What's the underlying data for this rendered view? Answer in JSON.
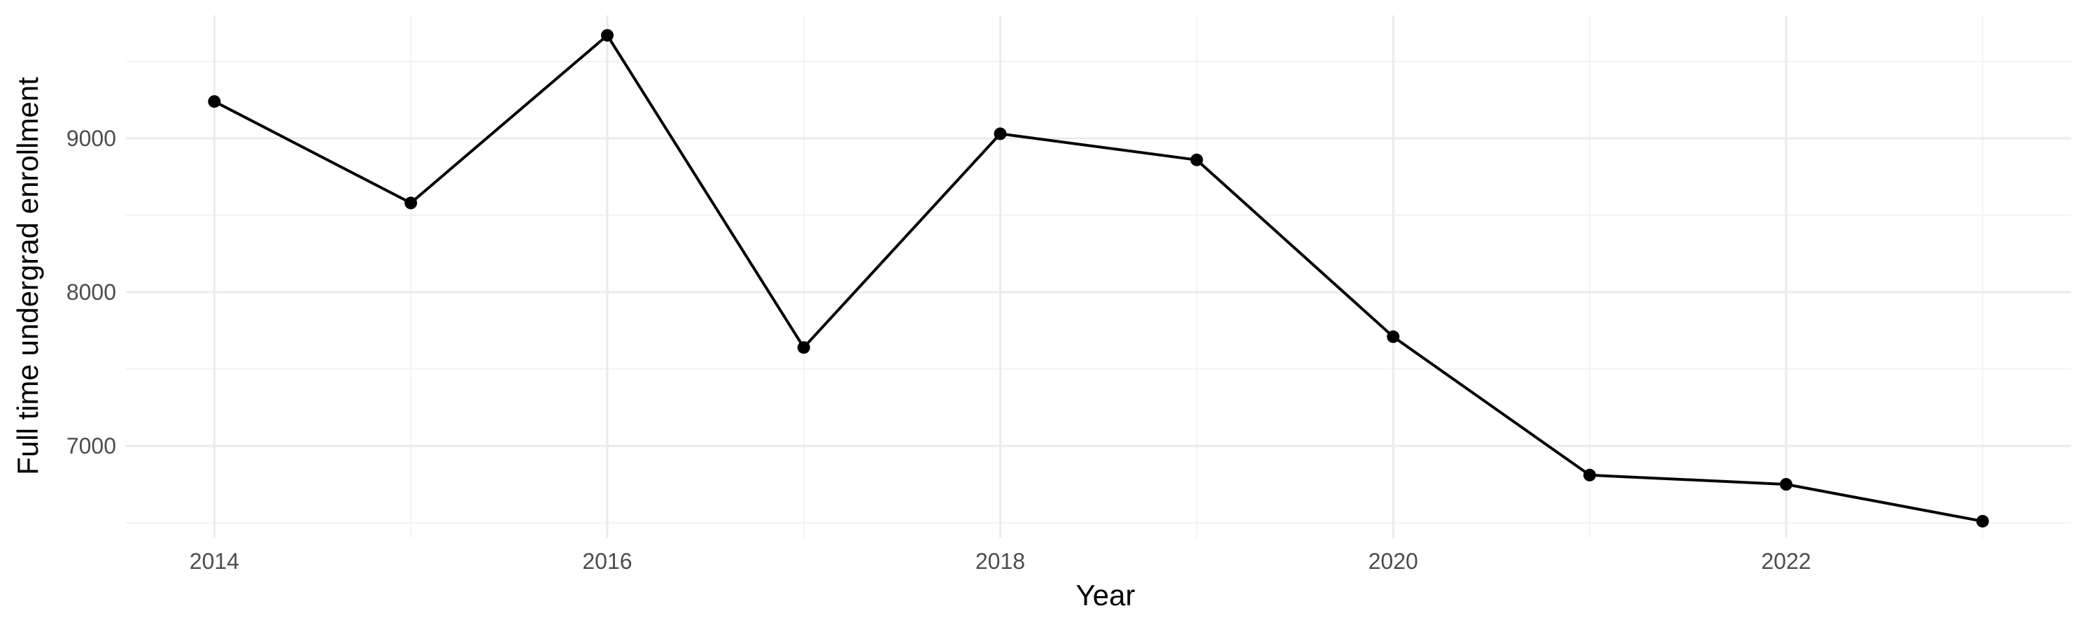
{
  "chart_data": {
    "type": "line",
    "title": "",
    "xlabel": "Year",
    "ylabel": "Full time undergrad enrollment",
    "x": [
      2014,
      2015,
      2016,
      2017,
      2018,
      2019,
      2020,
      2021,
      2022,
      2023
    ],
    "series": [
      {
        "values": [
          9240,
          8580,
          9670,
          7640,
          9030,
          8860,
          7710,
          6810,
          6750,
          6510
        ]
      }
    ],
    "xlim": [
      2013.55,
      2023.45
    ],
    "ylim": [
      6400,
      9800
    ],
    "x_ticks": [
      "2014",
      "2016",
      "2018",
      "2020",
      "2022"
    ],
    "x_tick_values": [
      2014,
      2016,
      2018,
      2020,
      2022
    ],
    "y_ticks": [
      "7000",
      "8000",
      "9000"
    ],
    "y_tick_values": [
      7000,
      8000,
      9000
    ],
    "grid": true,
    "legend": "none",
    "colors": {
      "line": "#000000",
      "point": "#000000",
      "grid_major": "#ebebeb",
      "grid_minor": "#f3f3f3",
      "tick_text": "#4d4d4d"
    }
  }
}
